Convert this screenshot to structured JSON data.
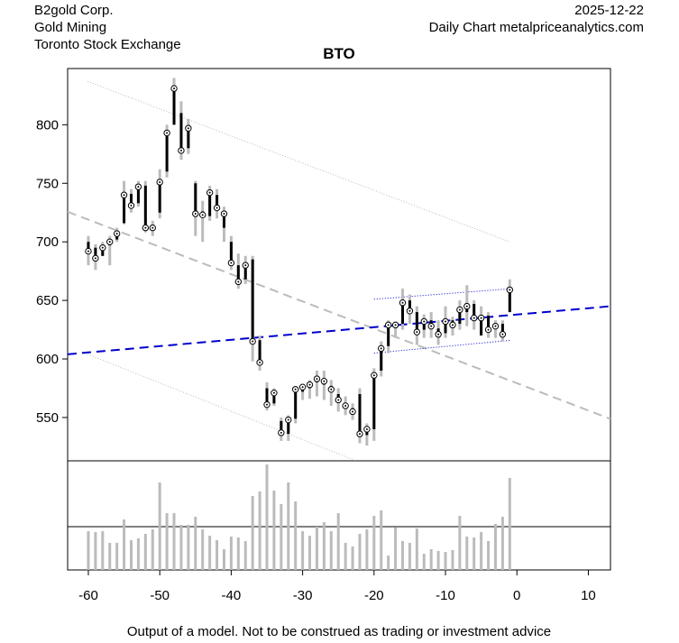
{
  "chart_data": {
    "type": "candlestick",
    "title": "BTO",
    "company": "B2gold Corp.",
    "sector": "Gold Mining",
    "exchange": "Toronto Stock Exchange",
    "date": "2025-12-22",
    "source": "Daily Chart metalpriceanalytics.com",
    "footer": "Output of a model. Not to be construed as trading or investment advice",
    "x": [
      -60,
      -59,
      -58,
      -57,
      -56,
      -55,
      -54,
      -53,
      -52,
      -51,
      -50,
      -49,
      -48,
      -47,
      -46,
      -45,
      -44,
      -43,
      -42,
      -41,
      -40,
      -39,
      -38,
      -37,
      -36,
      -35,
      -34,
      -33,
      -32,
      -31,
      -30,
      -29,
      -28,
      -27,
      -26,
      -25,
      -24,
      -23,
      -22,
      -21,
      -20,
      -19,
      -18,
      -17,
      -16,
      -15,
      -14,
      -13,
      -12,
      -11,
      -10,
      -9,
      -8,
      -7,
      -6,
      -5,
      -4,
      -3,
      -2,
      -1
    ],
    "open": [
      700,
      695,
      688,
      697,
      702,
      716,
      741,
      733,
      748,
      713,
      725,
      760,
      800,
      810,
      780,
      750,
      726,
      722,
      740,
      712,
      700,
      680,
      668,
      685,
      616,
      575,
      562,
      547,
      536,
      549,
      572,
      575,
      580,
      578,
      577,
      570,
      562,
      558,
      570,
      535,
      540,
      590,
      611,
      628,
      630,
      650,
      640,
      625,
      633,
      626,
      622,
      633,
      630,
      640,
      647,
      620,
      637,
      627,
      630,
      640
    ],
    "high": [
      705,
      698,
      700,
      705,
      712,
      752,
      745,
      752,
      752,
      718,
      762,
      800,
      840,
      820,
      805,
      752,
      735,
      748,
      745,
      730,
      705,
      690,
      688,
      688,
      620,
      580,
      575,
      550,
      552,
      577,
      578,
      582,
      590,
      590,
      582,
      575,
      568,
      562,
      575,
      545,
      592,
      615,
      633,
      632,
      660,
      655,
      645,
      638,
      640,
      633,
      645,
      636,
      650,
      663,
      650,
      645,
      640,
      633,
      633,
      668
    ],
    "low": [
      680,
      676,
      688,
      680,
      700,
      715,
      725,
      730,
      708,
      705,
      720,
      755,
      800,
      770,
      775,
      705,
      700,
      718,
      720,
      700,
      676,
      660,
      664,
      598,
      590,
      556,
      560,
      530,
      530,
      545,
      565,
      566,
      568,
      565,
      560,
      555,
      552,
      548,
      528,
      526,
      530,
      585,
      605,
      618,
      625,
      630,
      612,
      618,
      618,
      612,
      618,
      620,
      625,
      628,
      625,
      620,
      618,
      618,
      615,
      640
    ],
    "close": [
      692,
      686,
      695,
      700,
      707,
      740,
      731,
      747,
      712,
      712,
      751,
      793,
      831,
      778,
      797,
      724,
      723,
      742,
      729,
      724,
      682,
      666,
      680,
      615,
      597,
      561,
      571,
      537,
      548,
      574,
      576,
      578,
      583,
      581,
      574,
      565,
      560,
      555,
      536,
      540,
      586,
      609,
      629,
      629,
      648,
      641,
      623,
      632,
      628,
      621,
      632,
      629,
      642,
      645,
      635,
      635,
      625,
      628,
      621,
      659
    ],
    "wick_color": "#bbbbbb",
    "body_color": "#000000",
    "xlim": [
      -62.9,
      13.1
    ],
    "ylim": [
      513,
      848
    ],
    "xticks": [
      -60,
      -50,
      -40,
      -30,
      -20,
      -10,
      0,
      10
    ],
    "yticks": [
      550,
      600,
      650,
      700,
      750,
      800
    ],
    "lines": [
      {
        "x": [
          -62.9,
          13.1
        ],
        "y": [
          725.7,
          548.8
        ],
        "color": "#bbbbbb",
        "style": "dashed"
      },
      {
        "x": [
          -60.1,
          -1.0
        ],
        "y": [
          837,
          700
        ],
        "color": "#bbbbbb",
        "style": "dotted"
      },
      {
        "x": [
          -60.1,
          -22.5
        ],
        "y": [
          604,
          513
        ],
        "color": "#bbbbbb",
        "style": "dotted"
      },
      {
        "x": [
          -62.9,
          13.1
        ],
        "y": [
          604,
          645
        ],
        "color": "#0000cc",
        "style": "dashed"
      },
      {
        "x": [
          -20,
          -0.8
        ],
        "y": [
          651,
          660
        ],
        "color": "#0000cc",
        "style": "dotted"
      },
      {
        "x": [
          -20,
          -0.8
        ],
        "y": [
          605,
          616
        ],
        "color": "#0000cc",
        "style": "dotted"
      }
    ],
    "volume": {
      "values": [
        43,
        42,
        43,
        30,
        30,
        56,
        33,
        35,
        40,
        45,
        97,
        63,
        63,
        50,
        50,
        59,
        45,
        38,
        33,
        23,
        37,
        36,
        32,
        82,
        87,
        117,
        88,
        73,
        97,
        76,
        43,
        38,
        48,
        53,
        43,
        63,
        30,
        26,
        40,
        45,
        60,
        66,
        16,
        47,
        32,
        30,
        46,
        18,
        23,
        21,
        20,
        22,
        60,
        37,
        36,
        42,
        32,
        51,
        59,
        102
      ],
      "ylim": [
        0,
        121
      ],
      "reference": 48,
      "color": "#bbbbbb"
    }
  }
}
